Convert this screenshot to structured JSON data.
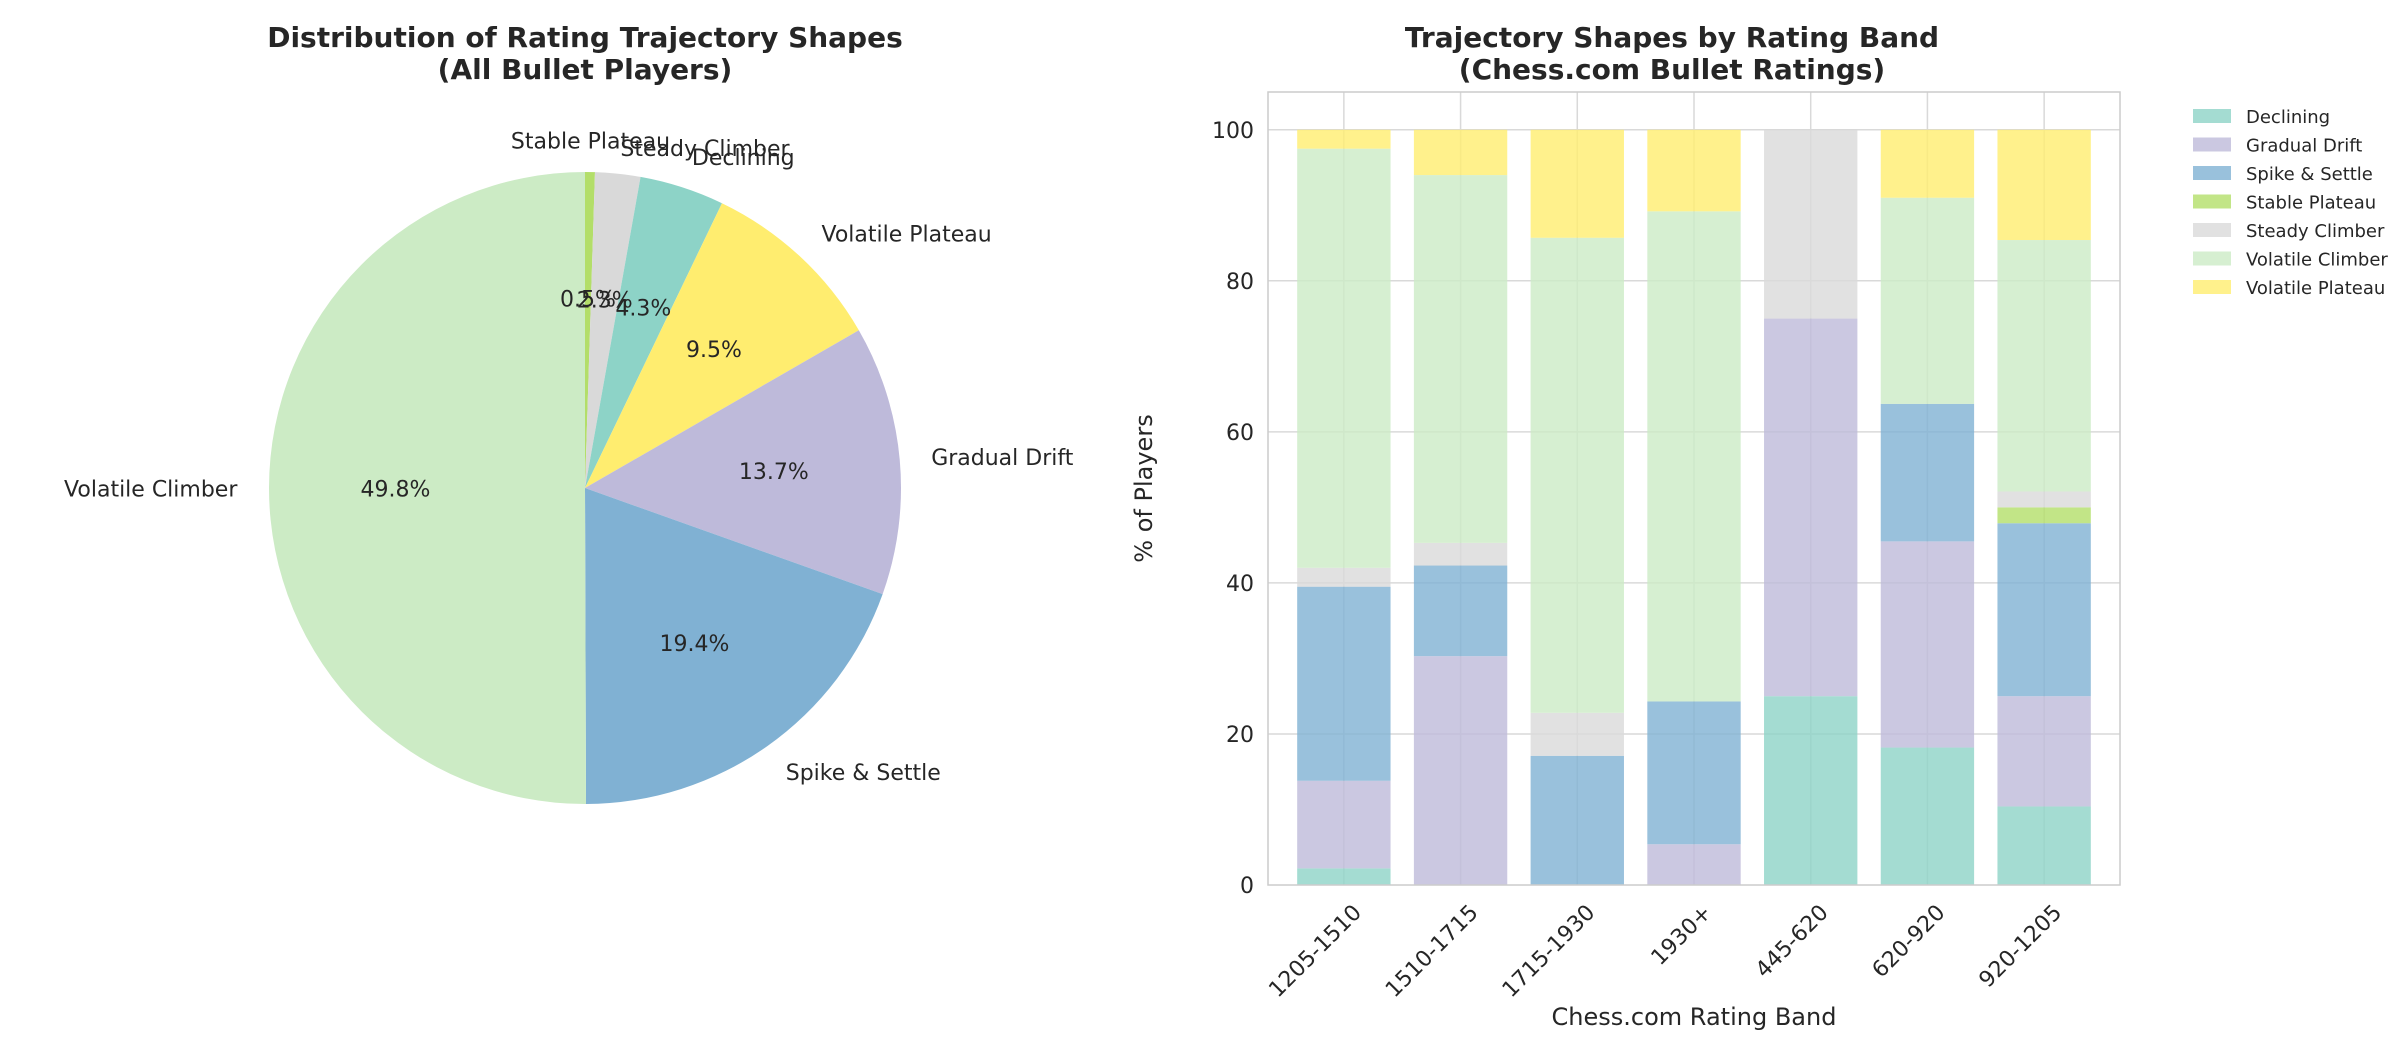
{
  "colors": {
    "Declining": "#8dd3c7",
    "Gradual Drift": "#bebada",
    "Spike & Settle": "#80b1d3",
    "Stable Plateau": "#b3de69",
    "Steady Climber": "#d9d9d9",
    "Volatile Climber": "#ccebc5",
    "Volatile Plateau": "#ffed6f"
  },
  "chart_data": [
    {
      "type": "pie",
      "title": "Distribution of Rating Trajectory Shapes\n(All Bullet Players)",
      "start_angle_deg": 90,
      "direction": "clockwise",
      "slices": [
        {
          "label": "Stable Plateau",
          "value": 0.5,
          "pct_label": "0.5%"
        },
        {
          "label": "Steady Climber",
          "value": 2.3,
          "pct_label": "2.3%"
        },
        {
          "label": "Declining",
          "value": 4.3,
          "pct_label": "4.3%"
        },
        {
          "label": "Volatile Plateau",
          "value": 9.5,
          "pct_label": "9.5%"
        },
        {
          "label": "Gradual Drift",
          "value": 13.7,
          "pct_label": "13.7%"
        },
        {
          "label": "Spike & Settle",
          "value": 19.4,
          "pct_label": "19.4%"
        },
        {
          "label": "Volatile Climber",
          "value": 49.8,
          "pct_label": "49.8%"
        }
      ]
    },
    {
      "type": "bar",
      "stacked": true,
      "title": "Trajectory Shapes by Rating Band\n(Chess.com Bullet Ratings)",
      "xlabel": "Chess.com Rating Band",
      "ylabel": "% of Players",
      "ylim": [
        0,
        105
      ],
      "yticks": [
        0,
        20,
        40,
        60,
        80,
        100
      ],
      "grid": true,
      "legend_position": "outside-right-top",
      "categories": [
        "1205-1510",
        "1510-1715",
        "1715-1930",
        "1930+",
        "445-620",
        "620-920",
        "920-1205"
      ],
      "series": [
        {
          "name": "Declining",
          "values": [
            2.2,
            0,
            0,
            0,
            25.0,
            18.2,
            10.4
          ]
        },
        {
          "name": "Gradual Drift",
          "values": [
            11.6,
            30.3,
            0,
            5.4,
            50.0,
            27.3,
            14.6
          ]
        },
        {
          "name": "Spike & Settle",
          "values": [
            25.7,
            12.0,
            17.1,
            18.9,
            0,
            18.2,
            22.9
          ]
        },
        {
          "name": "Stable Plateau",
          "values": [
            0,
            0,
            0,
            0,
            0,
            0,
            2.1
          ]
        },
        {
          "name": "Steady Climber",
          "values": [
            2.5,
            3.0,
            5.7,
            0,
            25.0,
            0,
            2.1
          ]
        },
        {
          "name": "Volatile Climber",
          "values": [
            55.5,
            48.7,
            62.9,
            64.9,
            0,
            27.3,
            33.3
          ]
        },
        {
          "name": "Volatile Plateau",
          "values": [
            2.5,
            6.0,
            14.3,
            10.8,
            0,
            9.0,
            14.6
          ]
        }
      ]
    }
  ]
}
